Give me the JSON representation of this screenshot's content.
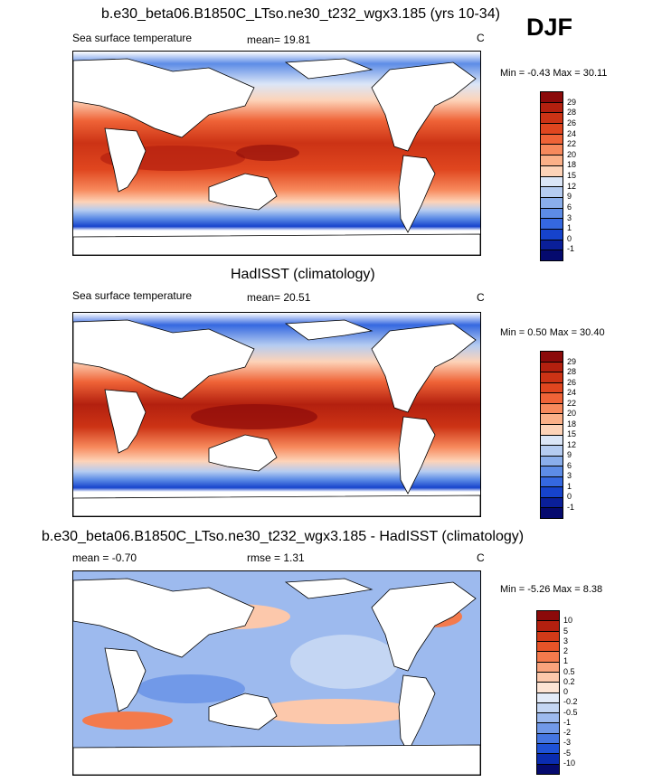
{
  "season": "DJF",
  "panels": [
    {
      "title": "b.e30_beta06.B1850C_LTso.ne30_t232_wgx3.185 (yrs 10-34)",
      "subtitle_left": "Sea surface temperature",
      "stat1": "mean=  19.81",
      "stat2": "",
      "units": "C",
      "minmax": "Min =  -0.43 Max =  30.11"
    },
    {
      "title": "HadISST (climatology)",
      "subtitle_left": "Sea surface temperature",
      "stat1": "mean=  20.51",
      "stat2": "",
      "units": "C",
      "minmax": "Min =  0.50 Max =  30.40"
    },
    {
      "title": "b.e30_beta06.B1850C_LTso.ne30_t232_wgx3.185 - HadISST (climatology)",
      "subtitle_left": "mean =  -0.70",
      "stat1": "rmse =  1.31",
      "stat2": "",
      "units": "C",
      "minmax": "Min =  -5.26 Max =  8.38"
    }
  ],
  "colorbar_sst": {
    "labels": [
      "29",
      "28",
      "26",
      "24",
      "22",
      "20",
      "18",
      "15",
      "12",
      "9",
      "6",
      "3",
      "1",
      "0",
      "-1"
    ],
    "colors": [
      "#8b0a0a",
      "#b3200f",
      "#cc3315",
      "#e0461f",
      "#ef6337",
      "#f7895c",
      "#fbb088",
      "#fdd3b8",
      "#dbe6f7",
      "#b5ccf1",
      "#8aaeeb",
      "#5d8ce6",
      "#3568e0",
      "#1643cc",
      "#0a1f99",
      "#050a6e"
    ]
  },
  "colorbar_diff": {
    "labels": [
      "10",
      "5",
      "3",
      "2",
      "1",
      "0.5",
      "0.2",
      "0",
      "-0.2",
      "-0.5",
      "-1",
      "-2",
      "-3",
      "-5",
      "-10"
    ],
    "colors": [
      "#8b0a0a",
      "#b3200f",
      "#d13a18",
      "#e65428",
      "#f47a4c",
      "#f9a37c",
      "#fcc8ab",
      "#fde4d4",
      "#e3ebf8",
      "#c4d6f3",
      "#9dbaee",
      "#7199e8",
      "#4576e2",
      "#1f52d6",
      "#0a2cb0",
      "#050a6e"
    ]
  }
}
